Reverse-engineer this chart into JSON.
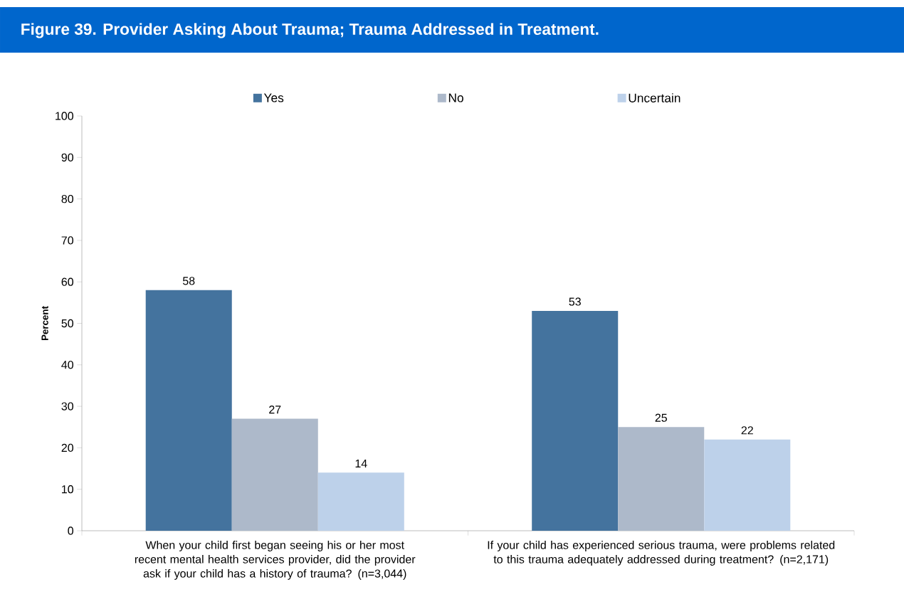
{
  "chart_data": {
    "type": "bar",
    "title": "Figure 39. Provider Asking About Trauma; Trauma Addressed in Treatment.",
    "ylabel": "Percent",
    "categories": [
      "When your child first began seeing his or her most recent mental health services provider, did the provider ask if your child has a history of trauma? (n=3,044)",
      "If your child has experienced serious trauma, were problems related to this trauma adequately addressed during treatment? (n=2,171)"
    ],
    "series": [
      {
        "name": "Yes",
        "color": "#44739e",
        "values": [
          58,
          53
        ]
      },
      {
        "name": "No",
        "color": "#adb9ca",
        "values": [
          27,
          25
        ]
      },
      {
        "name": "Uncertain",
        "color": "#bdd1ea",
        "values": [
          14,
          22
        ]
      }
    ],
    "ylim": [
      0,
      100
    ],
    "yticks": [
      0,
      10,
      20,
      30,
      40,
      50,
      60,
      70,
      80,
      90,
      100
    ],
    "data_labels": true,
    "legend": "top"
  }
}
